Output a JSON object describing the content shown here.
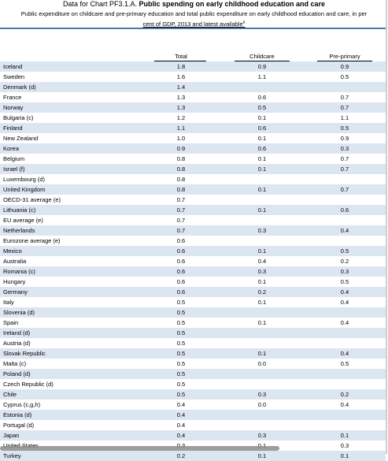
{
  "title": {
    "lead": "Data for Chart PF3.1.A.",
    "bold": "Public spending on early childhood education and care"
  },
  "subtitle": {
    "line1": "Public expenditure on childcare and pre-primary education and total public expenditure on early childhood education and care, in per",
    "line2": "cent of GDP, 2013 and latest available",
    "marker": "a"
  },
  "columns": {
    "total": "Total",
    "childcare": "Childcare",
    "preprimary": "Pre-primary"
  },
  "colors": {
    "rule": "#4a76b0",
    "alt_row": "#dce6f1"
  },
  "rows": [
    {
      "country": "Iceland",
      "total": "1.8",
      "childcare": "0.9",
      "preprimary": "0.9"
    },
    {
      "country": "Sweden",
      "total": "1.6",
      "childcare": "1.1",
      "preprimary": "0.5"
    },
    {
      "country": "Denmark (d)",
      "total": "1.4",
      "childcare": "",
      "preprimary": ""
    },
    {
      "country": "France",
      "total": "1.3",
      "childcare": "0.6",
      "preprimary": "0.7"
    },
    {
      "country": "Norway",
      "total": "1.3",
      "childcare": "0.5",
      "preprimary": "0.7"
    },
    {
      "country": "Bulgaria (c)",
      "total": "1.2",
      "childcare": "0.1",
      "preprimary": "1.1"
    },
    {
      "country": "Finland",
      "total": "1.1",
      "childcare": "0.6",
      "preprimary": "0.5"
    },
    {
      "country": "New Zealand",
      "total": "1.0",
      "childcare": "0.1",
      "preprimary": "0.9"
    },
    {
      "country": "Korea",
      "total": "0.9",
      "childcare": "0.6",
      "preprimary": "0.3"
    },
    {
      "country": "Belgium",
      "total": "0.8",
      "childcare": "0.1",
      "preprimary": "0.7"
    },
    {
      "country": "Israel (f)",
      "total": "0.8",
      "childcare": "0.1",
      "preprimary": "0.7"
    },
    {
      "country": "Luxembourg (d)",
      "total": "0.8",
      "childcare": "",
      "preprimary": ""
    },
    {
      "country": "United Kingdom",
      "total": "0.8",
      "childcare": "0.1",
      "preprimary": "0.7"
    },
    {
      "country": "OECD-31 average (e)",
      "total": "0.7",
      "childcare": "",
      "preprimary": ""
    },
    {
      "country": "Lithuania (c)",
      "total": "0.7",
      "childcare": "0.1",
      "preprimary": "0.6"
    },
    {
      "country": "EU average (e)",
      "total": "0.7",
      "childcare": "",
      "preprimary": ""
    },
    {
      "country": "Netherlands",
      "total": "0.7",
      "childcare": "0.3",
      "preprimary": "0.4"
    },
    {
      "country": "Eurozone average (e)",
      "total": "0.6",
      "childcare": "",
      "preprimary": ""
    },
    {
      "country": "Mexico",
      "total": "0.6",
      "childcare": "0.1",
      "preprimary": "0.5"
    },
    {
      "country": "Australia",
      "total": "0.6",
      "childcare": "0.4",
      "preprimary": "0.2"
    },
    {
      "country": "Romania (c)",
      "total": "0.6",
      "childcare": "0.3",
      "preprimary": "0.3"
    },
    {
      "country": "Hungary",
      "total": "0.6",
      "childcare": "0.1",
      "preprimary": "0.5"
    },
    {
      "country": "Germany",
      "total": "0.6",
      "childcare": "0.2",
      "preprimary": "0.4"
    },
    {
      "country": "Italy",
      "total": "0.5",
      "childcare": "0.1",
      "preprimary": "0.4"
    },
    {
      "country": "Slovenia (d)",
      "total": "0.5",
      "childcare": "",
      "preprimary": ""
    },
    {
      "country": "Spain",
      "total": "0.5",
      "childcare": "0.1",
      "preprimary": "0.4"
    },
    {
      "country": "Ireland (d)",
      "total": "0.5",
      "childcare": "",
      "preprimary": ""
    },
    {
      "country": "Austria (d)",
      "total": "0.5",
      "childcare": "",
      "preprimary": ""
    },
    {
      "country": "Slovak Republic",
      "total": "0.5",
      "childcare": "0.1",
      "preprimary": "0.4"
    },
    {
      "country": "Malta (c)",
      "total": "0.5",
      "childcare": "0.0",
      "preprimary": "0.5"
    },
    {
      "country": "Poland (d)",
      "total": "0.5",
      "childcare": "",
      "preprimary": ""
    },
    {
      "country": "Czech Republic (d)",
      "total": "0.5",
      "childcare": "",
      "preprimary": ""
    },
    {
      "country": "Chile",
      "total": "0.5",
      "childcare": "0.3",
      "preprimary": "0.2"
    },
    {
      "country": "Cyprus (c,g,h)",
      "total": "0.4",
      "childcare": "0.0",
      "preprimary": "0.4"
    },
    {
      "country": "Estonia (d)",
      "total": "0.4",
      "childcare": "",
      "preprimary": ""
    },
    {
      "country": "Portugal (d)",
      "total": "0.4",
      "childcare": "",
      "preprimary": ""
    },
    {
      "country": "Japan",
      "total": "0.4",
      "childcare": "0.3",
      "preprimary": "0.1"
    },
    {
      "country": "United States",
      "total": "0.3",
      "childcare": "0.1",
      "preprimary": "0.3"
    },
    {
      "country": "Turkey",
      "total": "0.2",
      "childcare": "0.1",
      "preprimary": "0.1"
    }
  ]
}
